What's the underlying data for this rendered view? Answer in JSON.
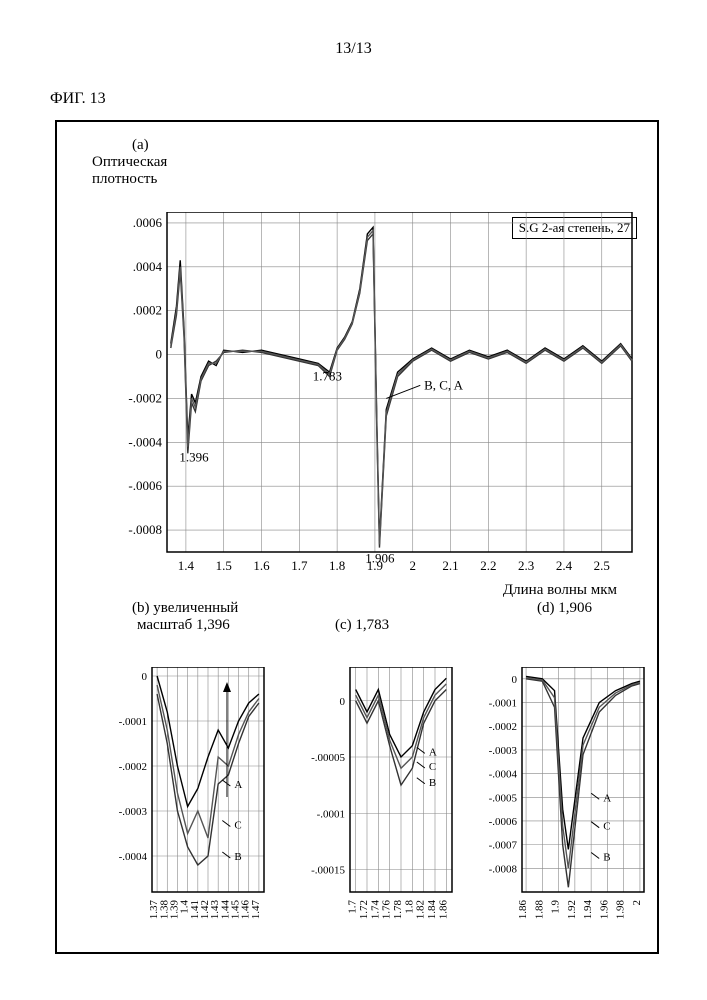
{
  "page_number": "13/13",
  "fig_label": "ФИГ. 13",
  "panel_a": {
    "label": "(a)",
    "ylabel": "Оптическая\nплотность",
    "xlabel": "Длина волны мкм",
    "legend": "S.G 2-ая степень, 27",
    "series_annotation": "B, C, A",
    "peak1": "1.396",
    "peak2": "1.783",
    "peak3": "1.906"
  },
  "panel_b": {
    "label": "(b) увеличенный",
    "sublabel": "масштаб   1,396",
    "annA": "A",
    "annB": "B",
    "annC": "C"
  },
  "panel_c": {
    "label": "(c) 1,783",
    "annA": "A",
    "annB": "B",
    "annC": "C"
  },
  "panel_d": {
    "label": "(d) 1,906",
    "annA": "A",
    "annB": "B",
    "annC": "C"
  },
  "main_chart": {
    "type": "line",
    "xlim": [
      1.35,
      2.58
    ],
    "ylim": [
      -0.0009,
      0.00065
    ],
    "xticks": [
      1.4,
      1.5,
      1.6,
      1.7,
      1.8,
      1.9,
      2,
      2.1,
      2.2,
      2.3,
      2.4,
      2.5
    ],
    "xtick_labels": [
      "1.4",
      "1.5",
      "1.6",
      "1.7",
      "1.8",
      "1.9",
      "2",
      "2.1",
      "2.2",
      "2.3",
      "2.4",
      "2.5"
    ],
    "yticks": [
      -0.0008,
      -0.0006,
      -0.0004,
      -0.0002,
      0,
      0.0002,
      0.0004,
      0.0006
    ],
    "ytick_labels": [
      "-.0008",
      "-.0006",
      "-.0004",
      "-.0002",
      "0",
      ".0002",
      ".0004",
      ".0006"
    ],
    "colorA": "#000000",
    "colorB": "#333333",
    "colorC": "#555555",
    "grid_color": "#888888",
    "background": "#ffffff",
    "seriesA": [
      [
        1.36,
        5e-05
      ],
      [
        1.375,
        0.00022
      ],
      [
        1.385,
        0.00043
      ],
      [
        1.395,
        0.00012
      ],
      [
        1.405,
        -0.00038
      ],
      [
        1.415,
        -0.00018
      ],
      [
        1.425,
        -0.00022
      ],
      [
        1.44,
        -0.0001
      ],
      [
        1.46,
        -3e-05
      ],
      [
        1.48,
        -5e-05
      ],
      [
        1.5,
        2e-05
      ],
      [
        1.55,
        1e-05
      ],
      [
        1.6,
        2e-05
      ],
      [
        1.65,
        0.0
      ],
      [
        1.7,
        -2e-05
      ],
      [
        1.75,
        -4e-05
      ],
      [
        1.78,
        -8e-05
      ],
      [
        1.8,
        3e-05
      ],
      [
        1.82,
        8e-05
      ],
      [
        1.84,
        0.00015
      ],
      [
        1.86,
        0.0003
      ],
      [
        1.88,
        0.00055
      ],
      [
        1.895,
        0.00058
      ],
      [
        1.905,
        -0.0003
      ],
      [
        1.912,
        -0.00085
      ],
      [
        1.93,
        -0.00025
      ],
      [
        1.96,
        -8e-05
      ],
      [
        2.0,
        -2e-05
      ],
      [
        2.05,
        3e-05
      ],
      [
        2.1,
        -2e-05
      ],
      [
        2.15,
        2e-05
      ],
      [
        2.2,
        -1e-05
      ],
      [
        2.25,
        2e-05
      ],
      [
        2.3,
        -3e-05
      ],
      [
        2.35,
        3e-05
      ],
      [
        2.4,
        -2e-05
      ],
      [
        2.45,
        4e-05
      ],
      [
        2.5,
        -3e-05
      ],
      [
        2.55,
        5e-05
      ],
      [
        2.58,
        -2e-05
      ]
    ],
    "seriesB": [
      [
        1.36,
        3e-05
      ],
      [
        1.375,
        0.00018
      ],
      [
        1.385,
        0.00038
      ],
      [
        1.395,
        8e-05
      ],
      [
        1.405,
        -0.00045
      ],
      [
        1.415,
        -0.00022
      ],
      [
        1.425,
        -0.00026
      ],
      [
        1.44,
        -0.00012
      ],
      [
        1.46,
        -5e-05
      ],
      [
        1.48,
        -3e-05
      ],
      [
        1.5,
        1e-05
      ],
      [
        1.55,
        2e-05
      ],
      [
        1.6,
        1e-05
      ],
      [
        1.65,
        -1e-05
      ],
      [
        1.7,
        -3e-05
      ],
      [
        1.75,
        -5e-05
      ],
      [
        1.78,
        -0.0001
      ],
      [
        1.8,
        2e-05
      ],
      [
        1.82,
        7e-05
      ],
      [
        1.84,
        0.00014
      ],
      [
        1.86,
        0.00028
      ],
      [
        1.88,
        0.00052
      ],
      [
        1.895,
        0.00055
      ],
      [
        1.905,
        -0.00035
      ],
      [
        1.912,
        -0.00088
      ],
      [
        1.93,
        -0.00028
      ],
      [
        1.96,
        -0.0001
      ],
      [
        2.0,
        -3e-05
      ],
      [
        2.05,
        2e-05
      ],
      [
        2.1,
        -3e-05
      ],
      [
        2.15,
        1e-05
      ],
      [
        2.2,
        -2e-05
      ],
      [
        2.25,
        1e-05
      ],
      [
        2.3,
        -4e-05
      ],
      [
        2.35,
        2e-05
      ],
      [
        2.4,
        -3e-05
      ],
      [
        2.45,
        3e-05
      ],
      [
        2.5,
        -4e-05
      ],
      [
        2.55,
        4e-05
      ],
      [
        2.58,
        -3e-05
      ]
    ],
    "seriesC": [
      [
        1.36,
        4e-05
      ],
      [
        1.375,
        0.0002
      ],
      [
        1.385,
        0.0004
      ],
      [
        1.395,
        0.0001
      ],
      [
        1.405,
        -0.00042
      ],
      [
        1.415,
        -0.0002
      ],
      [
        1.425,
        -0.00024
      ],
      [
        1.44,
        -0.00011
      ],
      [
        1.46,
        -4e-05
      ],
      [
        1.48,
        -4e-05
      ],
      [
        1.5,
        1.5e-05
      ],
      [
        1.55,
        1.5e-05
      ],
      [
        1.6,
        1.5e-05
      ],
      [
        1.65,
        -5e-06
      ],
      [
        1.7,
        -2.5e-05
      ],
      [
        1.75,
        -4.5e-05
      ],
      [
        1.78,
        -9e-05
      ],
      [
        1.8,
        2.5e-05
      ],
      [
        1.82,
        7.5e-05
      ],
      [
        1.84,
        0.000145
      ],
      [
        1.86,
        0.00029
      ],
      [
        1.88,
        0.000535
      ],
      [
        1.895,
        0.000565
      ],
      [
        1.905,
        -0.000325
      ],
      [
        1.912,
        -0.000865
      ],
      [
        1.93,
        -0.000265
      ],
      [
        1.96,
        -9e-05
      ],
      [
        2.0,
        -2.5e-05
      ],
      [
        2.05,
        2.5e-05
      ],
      [
        2.1,
        -2.5e-05
      ],
      [
        2.15,
        1.5e-05
      ],
      [
        2.2,
        -1.5e-05
      ],
      [
        2.25,
        1.5e-05
      ],
      [
        2.3,
        -3.5e-05
      ],
      [
        2.35,
        2.5e-05
      ],
      [
        2.4,
        -2.5e-05
      ],
      [
        2.45,
        3.5e-05
      ],
      [
        2.5,
        -3.5e-05
      ],
      [
        2.55,
        4.5e-05
      ],
      [
        2.58,
        -2.5e-05
      ]
    ]
  },
  "chart_b": {
    "type": "line",
    "xlim": [
      1.365,
      1.475
    ],
    "ylim": [
      -0.00048,
      2e-05
    ],
    "yticks": [
      0,
      -0.0001,
      -0.0002,
      -0.0003,
      -0.0004
    ],
    "ytick_labels": [
      "0",
      "-.0001",
      "-.0002",
      "-.0003",
      "-.0004"
    ],
    "xticks": [
      1.37,
      1.38,
      1.39,
      1.4,
      1.41,
      1.42,
      1.43,
      1.44,
      1.45,
      1.46,
      1.47
    ],
    "xtick_labels": [
      "1.37",
      "1.38",
      "1.39",
      "1.4",
      "1.41",
      "1.42",
      "1.43",
      "1.44",
      "1.45",
      "1.46",
      "1.47"
    ],
    "seriesA": [
      [
        1.37,
        0
      ],
      [
        1.38,
        -8e-05
      ],
      [
        1.39,
        -0.0002
      ],
      [
        1.4,
        -0.00029
      ],
      [
        1.41,
        -0.00025
      ],
      [
        1.42,
        -0.00018
      ],
      [
        1.43,
        -0.00012
      ],
      [
        1.44,
        -0.00016
      ],
      [
        1.45,
        -0.0001
      ],
      [
        1.46,
        -6e-05
      ],
      [
        1.47,
        -4e-05
      ]
    ],
    "seriesC": [
      [
        1.37,
        -2e-05
      ],
      [
        1.38,
        -0.00012
      ],
      [
        1.39,
        -0.00026
      ],
      [
        1.4,
        -0.00035
      ],
      [
        1.41,
        -0.0003
      ],
      [
        1.42,
        -0.00036
      ],
      [
        1.43,
        -0.00018
      ],
      [
        1.44,
        -0.0002
      ],
      [
        1.45,
        -0.00013
      ],
      [
        1.46,
        -8e-05
      ],
      [
        1.47,
        -5e-05
      ]
    ],
    "seriesB": [
      [
        1.37,
        -4e-05
      ],
      [
        1.38,
        -0.00015
      ],
      [
        1.39,
        -0.0003
      ],
      [
        1.4,
        -0.00038
      ],
      [
        1.41,
        -0.00042
      ],
      [
        1.42,
        -0.0004
      ],
      [
        1.43,
        -0.00024
      ],
      [
        1.44,
        -0.00022
      ],
      [
        1.45,
        -0.00015
      ],
      [
        1.46,
        -9e-05
      ],
      [
        1.47,
        -6e-05
      ]
    ]
  },
  "chart_c": {
    "type": "line",
    "xlim": [
      1.69,
      1.87
    ],
    "ylim": [
      -0.00017,
      3e-05
    ],
    "yticks": [
      0,
      -5e-05,
      -0.0001,
      -0.00015
    ],
    "ytick_labels": [
      "0",
      "-.00005",
      "-.0001",
      "-.00015"
    ],
    "xticks": [
      1.7,
      1.72,
      1.74,
      1.76,
      1.78,
      1.8,
      1.82,
      1.84,
      1.86
    ],
    "xtick_labels": [
      "1.7",
      "1.72",
      "1.74",
      "1.76",
      "1.78",
      "1.8",
      "1.82",
      "1.84",
      "1.86"
    ],
    "seriesA": [
      [
        1.7,
        1e-05
      ],
      [
        1.72,
        -1e-05
      ],
      [
        1.74,
        1e-05
      ],
      [
        1.76,
        -3e-05
      ],
      [
        1.78,
        -5e-05
      ],
      [
        1.8,
        -4e-05
      ],
      [
        1.82,
        -1e-05
      ],
      [
        1.84,
        1e-05
      ],
      [
        1.86,
        2e-05
      ]
    ],
    "seriesC": [
      [
        1.7,
        5e-06
      ],
      [
        1.72,
        -1.5e-05
      ],
      [
        1.74,
        5e-06
      ],
      [
        1.76,
        -3.5e-05
      ],
      [
        1.78,
        -6e-05
      ],
      [
        1.8,
        -5e-05
      ],
      [
        1.82,
        -1.5e-05
      ],
      [
        1.84,
        5e-06
      ],
      [
        1.86,
        1.5e-05
      ]
    ],
    "seriesB": [
      [
        1.7,
        0
      ],
      [
        1.72,
        -2e-05
      ],
      [
        1.74,
        0
      ],
      [
        1.76,
        -4e-05
      ],
      [
        1.78,
        -7.5e-05
      ],
      [
        1.8,
        -6e-05
      ],
      [
        1.82,
        -2e-05
      ],
      [
        1.84,
        0
      ],
      [
        1.86,
        1e-05
      ]
    ]
  },
  "chart_d": {
    "type": "line",
    "xlim": [
      1.855,
      2.005
    ],
    "ylim": [
      -0.0009,
      5e-05
    ],
    "yticks": [
      0,
      -0.0001,
      -0.0002,
      -0.0003,
      -0.0004,
      -0.0005,
      -0.0006,
      -0.0007,
      -0.0008
    ],
    "ytick_labels": [
      "0",
      "-.0001",
      "-.0002",
      "-.0003",
      "-.0004",
      "-.0005",
      "-.0006",
      "-.0007",
      "-.0008"
    ],
    "xticks": [
      1.86,
      1.88,
      1.9,
      1.92,
      1.94,
      1.96,
      1.98,
      2
    ],
    "xtick_labels": [
      "1.86",
      "1.88",
      "1.9",
      "1.92",
      "1.94",
      "1.96",
      "1.98",
      "2"
    ],
    "seriesA": [
      [
        1.86,
        1e-05
      ],
      [
        1.88,
        0
      ],
      [
        1.895,
        -5e-05
      ],
      [
        1.905,
        -0.00055
      ],
      [
        1.912,
        -0.00072
      ],
      [
        1.93,
        -0.00025
      ],
      [
        1.95,
        -0.0001
      ],
      [
        1.97,
        -5e-05
      ],
      [
        1.99,
        -2e-05
      ],
      [
        2.0,
        -1e-05
      ]
    ],
    "seriesC": [
      [
        1.86,
        5e-06
      ],
      [
        1.88,
        -5e-06
      ],
      [
        1.895,
        -8e-05
      ],
      [
        1.905,
        -0.00062
      ],
      [
        1.912,
        -0.0008
      ],
      [
        1.93,
        -0.00028
      ],
      [
        1.95,
        -0.00012
      ],
      [
        1.97,
        -6e-05
      ],
      [
        1.99,
        -2.5e-05
      ],
      [
        2.0,
        -1.5e-05
      ]
    ],
    "seriesB": [
      [
        1.86,
        0
      ],
      [
        1.88,
        -1e-05
      ],
      [
        1.895,
        -0.00012
      ],
      [
        1.905,
        -0.0007
      ],
      [
        1.912,
        -0.00088
      ],
      [
        1.93,
        -0.00032
      ],
      [
        1.95,
        -0.00014
      ],
      [
        1.97,
        -7e-05
      ],
      [
        1.99,
        -3e-05
      ],
      [
        2.0,
        -2e-05
      ]
    ]
  }
}
